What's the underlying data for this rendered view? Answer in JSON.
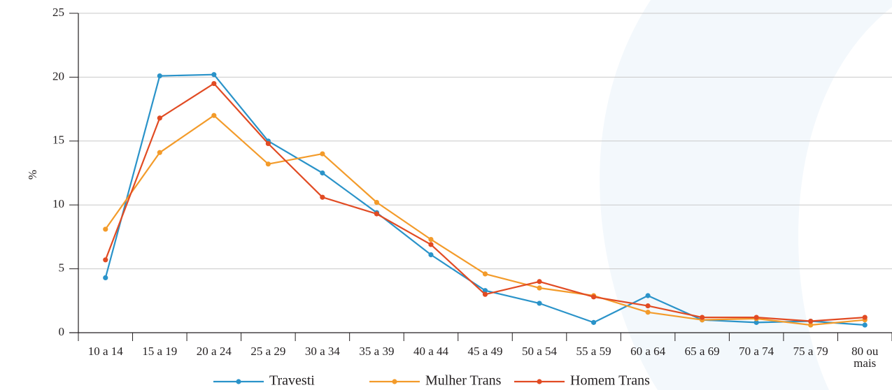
{
  "chart_data": {
    "type": "line",
    "ylabel": "%",
    "ylim": [
      0,
      25
    ],
    "yticks": [
      0,
      5,
      10,
      15,
      20,
      25
    ],
    "grid": "horizontal",
    "legend_position": "bottom",
    "categories": [
      "10 a 14",
      "15 a 19",
      "20 a 24",
      "25 a 29",
      "30 a 34",
      "35 a 39",
      "40 a 44",
      "45 a 49",
      "50 a 54",
      "55 a 59",
      "60 a 64",
      "65 a 69",
      "70 a 74",
      "75 a 79",
      "80 ou mais"
    ],
    "category_lines": [
      [
        "10 a 14"
      ],
      [
        "15 a 19"
      ],
      [
        "20 a 24"
      ],
      [
        "25 a 29"
      ],
      [
        "30 a 34"
      ],
      [
        "35 a 39"
      ],
      [
        "40 a 44"
      ],
      [
        "45 a 49"
      ],
      [
        "50 a 54"
      ],
      [
        "55 a 59"
      ],
      [
        "60 a 64"
      ],
      [
        "65 a 69"
      ],
      [
        "70 a 74"
      ],
      [
        "75 a 79"
      ],
      [
        "80 ou",
        "mais"
      ]
    ],
    "series": [
      {
        "name": "Travesti",
        "color": "#2a93c9",
        "values": [
          4.3,
          20.1,
          20.2,
          15.0,
          12.5,
          9.4,
          6.1,
          3.3,
          2.3,
          0.8,
          2.9,
          1.0,
          0.8,
          0.9,
          0.6
        ]
      },
      {
        "name": "Mulher Trans",
        "color": "#f39b2a",
        "values": [
          8.1,
          14.1,
          17.0,
          13.2,
          14.0,
          10.2,
          7.3,
          4.6,
          3.5,
          2.9,
          1.6,
          1.0,
          1.1,
          0.6,
          1.0
        ]
      },
      {
        "name": "Homem Trans",
        "color": "#e14b23",
        "values": [
          5.7,
          16.8,
          19.5,
          14.8,
          10.6,
          9.3,
          6.9,
          3.0,
          4.0,
          2.8,
          2.1,
          1.2,
          1.2,
          0.9,
          1.2
        ]
      }
    ],
    "background_shape_color": "#f3f8fc"
  }
}
